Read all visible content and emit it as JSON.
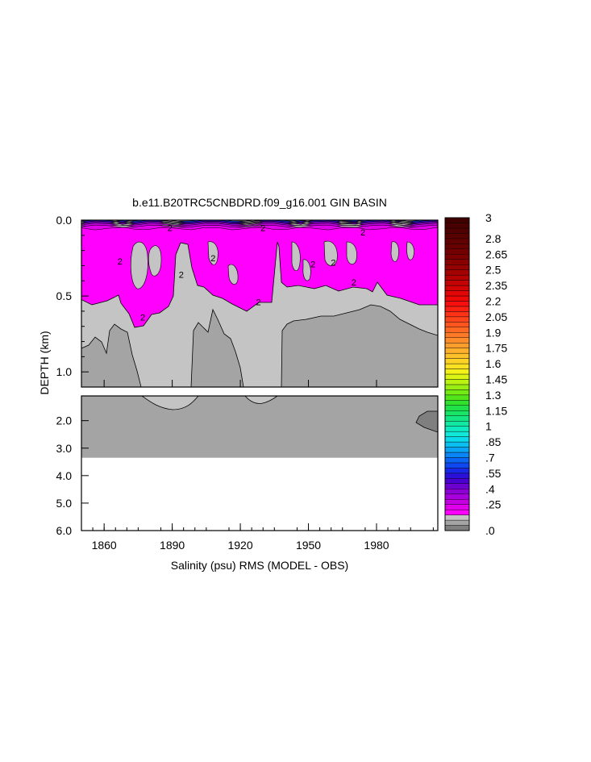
{
  "chart_data": {
    "type": "heatmap",
    "title": "b.e11.B20TRC5CNBDRD.f09_g16.001 GIN BASIN",
    "xlabel": "Salinity (psu) RMS (MODEL - OBS)",
    "ylabel": "DEPTH (km)",
    "x_ticks": [
      "1860",
      "1890",
      "1920",
      "1950",
      "1980"
    ],
    "x_tick_values": [
      1860,
      1890,
      1920,
      1950,
      1980
    ],
    "xlim": [
      1850,
      2007
    ],
    "upper_panel": {
      "ylim": [
        0.0,
        1.1
      ],
      "y_ticks": [
        "0.0",
        "0.5",
        "1.0"
      ],
      "y_tick_values": [
        0.0,
        0.5,
        1.0
      ]
    },
    "lower_panel": {
      "ylim": [
        1.1,
        6.0
      ],
      "y_ticks": [
        "2.0",
        "3.0",
        "4.0",
        "5.0",
        "6.0"
      ],
      "y_tick_values": [
        2.0,
        3.0,
        4.0,
        5.0,
        6.0
      ],
      "bottom_depth": 3.35
    },
    "contour_labels": [
      {
        "text": "2",
        "x": 1889,
        "y": 0.05
      },
      {
        "text": "2",
        "x": 1930,
        "y": 0.05
      },
      {
        "text": "2",
        "x": 1974,
        "y": 0.08
      },
      {
        "text": "2",
        "x": 1867,
        "y": 0.27
      },
      {
        "text": "2",
        "x": 1908,
        "y": 0.25
      },
      {
        "text": "2",
        "x": 1894,
        "y": 0.36
      },
      {
        "text": "2",
        "x": 1952,
        "y": 0.29
      },
      {
        "text": "2",
        "x": 1961,
        "y": 0.28
      },
      {
        "text": "2",
        "x": 1970,
        "y": 0.41
      },
      {
        "text": "2",
        "x": 1877,
        "y": 0.64
      },
      {
        "text": "2",
        "x": 1928,
        "y": 0.54
      }
    ],
    "colorbar": {
      "labels": [
        "3",
        "2.8",
        "2.65",
        "2.5",
        "2.35",
        "2.2",
        "2.05",
        "1.9",
        "1.75",
        "1.6",
        "1.45",
        "1.3",
        "1.15",
        "1",
        ".85",
        ".7",
        ".55",
        ".4",
        ".25",
        ".0"
      ],
      "label_values": [
        3.0,
        2.8,
        2.65,
        2.5,
        2.35,
        2.2,
        2.05,
        1.9,
        1.75,
        1.6,
        1.45,
        1.3,
        1.15,
        1.0,
        0.85,
        0.7,
        0.55,
        0.4,
        0.25,
        0.0
      ],
      "range": [
        0.0,
        3.0
      ],
      "step": 0.05,
      "colors_low_to_high": [
        "#7f7f7f",
        "#a4a4a4",
        "#c4c4c4",
        "#ff00ff",
        "#e200ec",
        "#c400e2",
        "#a800dc",
        "#8c00d6",
        "#6c00d0",
        "#4a00ce",
        "#2a10d8",
        "#1828e6",
        "#0f48f0",
        "#0a66f4",
        "#0a86f6",
        "#0aa4f6",
        "#0ac0f2",
        "#0adaea",
        "#10e8d8",
        "#10eac0",
        "#12e8a2",
        "#14e684",
        "#18e466",
        "#1ee248",
        "#30e22e",
        "#52e61a",
        "#74ea14",
        "#98ee12",
        "#baf212",
        "#dcf414",
        "#f4f01a",
        "#fae222",
        "#fcd226",
        "#fdc12a",
        "#feb02c",
        "#fe9e2c",
        "#fe8c2a",
        "#fe7a26",
        "#fe6822",
        "#fe561e",
        "#fe441a",
        "#fd3216",
        "#fb2012",
        "#f70e0e",
        "#ee0808",
        "#e20606",
        "#d40404",
        "#c40404",
        "#b40202",
        "#a40202",
        "#960202",
        "#880000",
        "#7c0000",
        "#720000",
        "#680000",
        "#600000",
        "#580000",
        "#500000",
        "#480000",
        "#400000"
      ]
    }
  }
}
